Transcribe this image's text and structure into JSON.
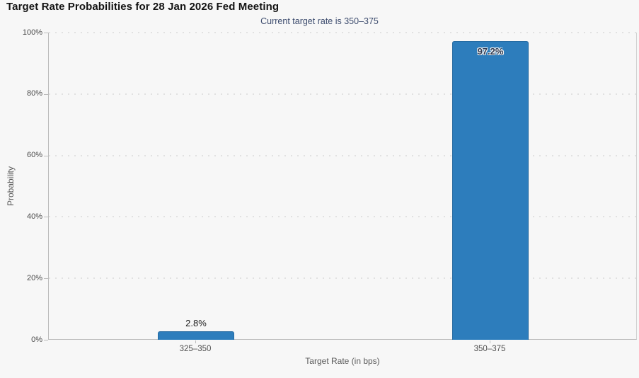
{
  "chart_data": {
    "type": "bar",
    "title": "Target Rate Probabilities for 28 Jan 2026 Fed Meeting",
    "subtitle": "Current target rate is 350–375",
    "categories": [
      "325–350",
      "350–375"
    ],
    "values": [
      2.8,
      97.2
    ],
    "value_labels": [
      "2.8%",
      "97.2%"
    ],
    "xlabel": "Target Rate (in bps)",
    "ylabel": "Probability",
    "ylim": [
      0,
      100
    ],
    "ytick_values": [
      0,
      20,
      40,
      60,
      80,
      100
    ],
    "ytick_labels": [
      "0%",
      "20%",
      "40%",
      "60%",
      "80%",
      "100%"
    ],
    "grid": "horizontal-dotted",
    "legend": "none",
    "bar_color": "#2d7dbc",
    "bar_border_color": "#2469a0",
    "background_color": "#f7f7f7"
  }
}
